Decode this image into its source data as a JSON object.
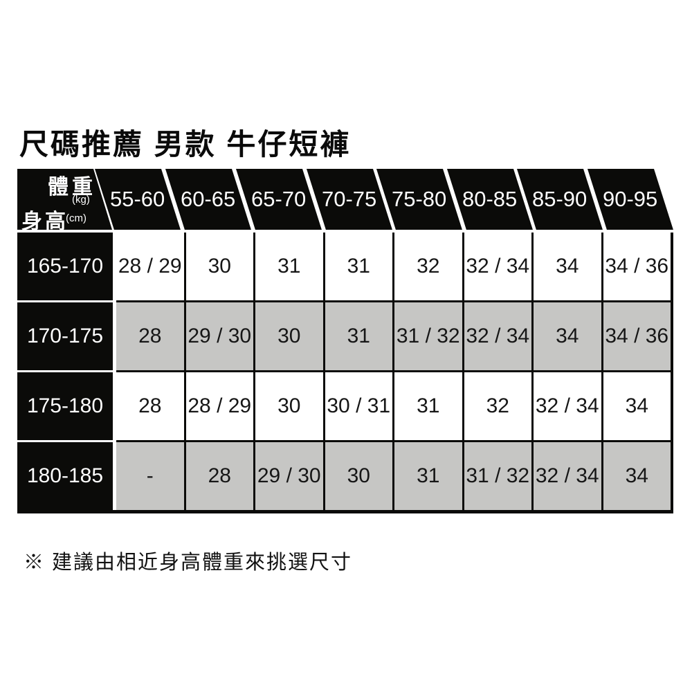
{
  "title": "尺碼推薦 男款 牛仔短褲",
  "note": "※ 建議由相近身高體重來挑選尺寸",
  "colors": {
    "header_bg": "#0b0b09",
    "header_text": "#ffffff",
    "row_white": "#ffffff",
    "row_gray": "#c6c6c4",
    "grid_line": "#0b0b09",
    "cell_text": "#161616",
    "page_bg": "#ffffff"
  },
  "chart_data": {
    "type": "table",
    "title": "尺碼推薦 男款 牛仔短褲",
    "corner": {
      "weight_label": "體重",
      "weight_unit": "(kg)",
      "height_label": "身高",
      "height_unit": "(cm)"
    },
    "col_axis_label": "體重 (kg)",
    "row_axis_label": "身高 (cm)",
    "weight_categories": [
      "55-60",
      "60-65",
      "65-70",
      "70-75",
      "75-80",
      "80-85",
      "85-90",
      "90-95"
    ],
    "height_categories": [
      "165-170",
      "170-175",
      "175-180",
      "180-185"
    ],
    "values": [
      [
        "28 / 29",
        "30",
        "31",
        "31",
        "32",
        "32 / 34",
        "34",
        "34 / 36"
      ],
      [
        "28",
        "29 / 30",
        "30",
        "31",
        "31 / 32",
        "32 / 34",
        "34",
        "34 / 36"
      ],
      [
        "28",
        "28 / 29",
        "30",
        "30 / 31",
        "31",
        "32",
        "32 / 34",
        "34"
      ],
      [
        "-",
        "28",
        "29 / 30",
        "30",
        "31",
        "31 / 32",
        "32 / 34",
        "34"
      ]
    ],
    "note": "※ 建議由相近身高體重來挑選尺寸",
    "layout_hints": {
      "row_shading": [
        "white",
        "gray",
        "white",
        "gray"
      ],
      "header_style": "black slanted parallelogram cells with white diagonal separators",
      "grid": "on"
    }
  }
}
